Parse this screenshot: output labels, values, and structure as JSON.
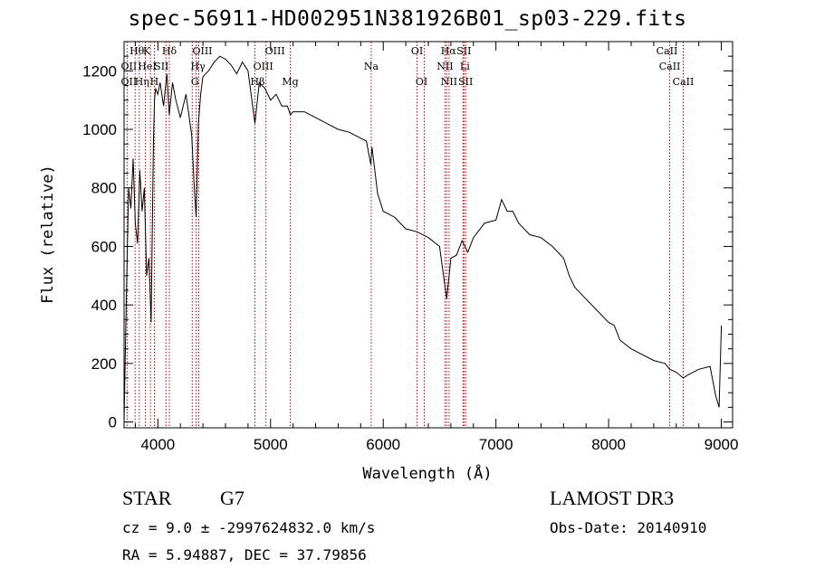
{
  "chart_data": {
    "type": "line",
    "title": "spec-56911-HD002951N381926B01_sp03-229.fits",
    "xlabel": "Wavelength (Å)",
    "ylabel": "Flux (relative)",
    "xlim": [
      3700,
      9100
    ],
    "ylim": [
      -20,
      1300
    ],
    "xticks": [
      4000,
      5000,
      6000,
      7000,
      8000,
      9000
    ],
    "yticks": [
      0,
      200,
      400,
      600,
      800,
      1000,
      1200
    ],
    "grid": false,
    "colors": {
      "spectrum": "#000000",
      "line_markers": "#cc0000"
    },
    "series": [
      {
        "x": [
          3700,
          3720,
          3740,
          3760,
          3780,
          3800,
          3820,
          3840,
          3860,
          3880,
          3900,
          3920,
          3940,
          3960,
          3970,
          3980,
          4000,
          4020,
          4050,
          4080,
          4101,
          4130,
          4160,
          4200,
          4250,
          4300,
          4320,
          4340,
          4360,
          4380,
          4400,
          4450,
          4500,
          4550,
          4600,
          4650,
          4700,
          4750,
          4800,
          4861,
          4900,
          4950,
          5000,
          5050,
          5100,
          5150,
          5175,
          5200,
          5300,
          5400,
          5500,
          5600,
          5700,
          5800,
          5850,
          5890,
          5900,
          5950,
          6000,
          6100,
          6200,
          6300,
          6400,
          6500,
          6563,
          6600,
          6650,
          6700,
          6750,
          6800,
          6900,
          7000,
          7050,
          7100,
          7150,
          7200,
          7300,
          7400,
          7500,
          7550,
          7600,
          7650,
          7700,
          7800,
          7900,
          8000,
          8050,
          8100,
          8200,
          8300,
          8400,
          8500,
          8542,
          8600,
          8662,
          8700,
          8800,
          8900,
          8950,
          8980,
          9000
        ],
        "y": [
          0,
          420,
          800,
          730,
          900,
          680,
          610,
          860,
          720,
          800,
          500,
          560,
          340,
          950,
          1100,
          1140,
          1120,
          1160,
          1080,
          1190,
          1050,
          1160,
          1100,
          1040,
          1120,
          980,
          820,
          700,
          1020,
          1120,
          1180,
          1200,
          1230,
          1250,
          1240,
          1220,
          1190,
          1230,
          1200,
          1020,
          1160,
          1140,
          1100,
          1120,
          1080,
          1080,
          1050,
          1060,
          1060,
          1040,
          1020,
          1000,
          990,
          970,
          960,
          880,
          940,
          780,
          720,
          700,
          660,
          650,
          630,
          600,
          420,
          560,
          570,
          620,
          580,
          630,
          680,
          690,
          760,
          720,
          720,
          680,
          640,
          630,
          600,
          580,
          560,
          500,
          460,
          420,
          380,
          340,
          330,
          280,
          250,
          230,
          210,
          200,
          180,
          170,
          150,
          160,
          180,
          190,
          90,
          50,
          330
        ]
      }
    ],
    "emission_lines": [
      {
        "name": "Hθ",
        "x": 3798,
        "row": 1,
        "dx": 2
      },
      {
        "name": "OII",
        "x": 3727,
        "row": 2,
        "dx": 2
      },
      {
        "name": "OII",
        "x": 3727,
        "row": 3,
        "dx": 2
      },
      {
        "name": "Hη",
        "x": 3835,
        "row": 3,
        "dx": 3
      },
      {
        "name": "K",
        "x": 3934,
        "row": 1,
        "dx": -4
      },
      {
        "name": "HeI",
        "x": 3889,
        "row": 2,
        "dx": 2
      },
      {
        "name": "SII",
        "x": 4072,
        "row": 2,
        "dx": -5
      },
      {
        "name": "H",
        "x": 3969,
        "row": 3,
        "dx": 0
      },
      {
        "name": "Hδ",
        "x": 4102,
        "row": 1,
        "dx": 0
      },
      {
        "name": "OIII",
        "x": 4363,
        "row": 1,
        "dx": 4
      },
      {
        "name": "Hγ",
        "x": 4340,
        "row": 2,
        "dx": 2
      },
      {
        "name": "G",
        "x": 4305,
        "row": 3,
        "dx": 3
      },
      {
        "name": "OIII",
        "x": 4959,
        "row": 1,
        "dx": 10
      },
      {
        "name": "OIII",
        "x": 4959,
        "row": 2,
        "dx": -3
      },
      {
        "name": "Hβ",
        "x": 4861,
        "row": 3,
        "dx": 3
      },
      {
        "name": "Mg",
        "x": 5175,
        "row": 3,
        "dx": 0
      },
      {
        "name": "Na",
        "x": 5893,
        "row": 2,
        "dx": 0
      },
      {
        "name": "OI",
        "x": 6300,
        "row": 1,
        "dx": 0
      },
      {
        "name": "OI",
        "x": 6364,
        "row": 3,
        "dx": -3
      },
      {
        "name": "Hα",
        "x": 6563,
        "row": 1,
        "dx": 2
      },
      {
        "name": "SII",
        "x": 6716,
        "row": 1,
        "dx": 0
      },
      {
        "name": "NII",
        "x": 6548,
        "row": 2,
        "dx": 0
      },
      {
        "name": "Li",
        "x": 6708,
        "row": 2,
        "dx": 2
      },
      {
        "name": "NII",
        "x": 6584,
        "row": 3,
        "dx": 0
      },
      {
        "name": "SII",
        "x": 6731,
        "row": 3,
        "dx": 0
      },
      {
        "name": "CaII",
        "x": 8662,
        "row": 1,
        "dx": -18
      },
      {
        "name": "CaII",
        "x": 8542,
        "row": 2,
        "dx": 0
      },
      {
        "name": "CaII",
        "x": 8662,
        "row": 3,
        "dx": 0
      }
    ]
  },
  "info": {
    "object_type": "STAR",
    "object_class": "G7",
    "survey": "LAMOST DR3",
    "cz": "cz = 9.0 ± -2997624832.0 km/s",
    "obs_date": "Obs-Date: 20140910",
    "ra_dec": "RA =   5.94887, DEC =  37.79856"
  }
}
